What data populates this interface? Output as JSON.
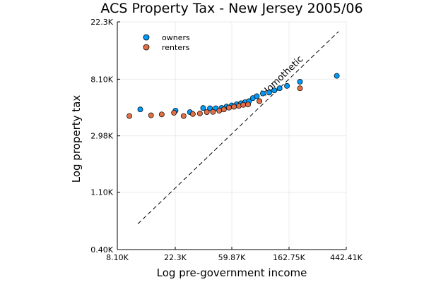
{
  "chart_data": {
    "type": "scatter",
    "title": "ACS Property Tax - New Jersey 2005/06",
    "xlabel": "Log pre-government income",
    "ylabel": "Log property tax",
    "xscale": "log",
    "yscale": "log",
    "xlim": [
      8100,
      442410
    ],
    "ylim": [
      400,
      22300
    ],
    "x_ticks": [
      {
        "value": 8100,
        "label": "8.10K"
      },
      {
        "value": 22300,
        "label": "22.3K"
      },
      {
        "value": 59870,
        "label": "59.87K"
      },
      {
        "value": 162750,
        "label": "162.75K"
      },
      {
        "value": 442410,
        "label": "442.41K"
      }
    ],
    "y_ticks": [
      {
        "value": 400,
        "label": "0.40K"
      },
      {
        "value": 1100,
        "label": "1.10K"
      },
      {
        "value": 2980,
        "label": "2.98K"
      },
      {
        "value": 8100,
        "label": "8.10K"
      },
      {
        "value": 22300,
        "label": "22.3K"
      }
    ],
    "grid": true,
    "legend_position": "top-left",
    "series": [
      {
        "name": "owners",
        "color": "#009af9",
        "points": [
          [
            12100,
            4750
          ],
          [
            22400,
            4650
          ],
          [
            28800,
            4530
          ],
          [
            36300,
            4870
          ],
          [
            40900,
            4850
          ],
          [
            45300,
            4850
          ],
          [
            50100,
            4880
          ],
          [
            54600,
            5000
          ],
          [
            59800,
            5100
          ],
          [
            65200,
            5200
          ],
          [
            70300,
            5300
          ],
          [
            75500,
            5400
          ],
          [
            80900,
            5500
          ],
          [
            86500,
            5800
          ],
          [
            92700,
            6000
          ],
          [
            103000,
            6300
          ],
          [
            115000,
            6400
          ],
          [
            126000,
            6650
          ],
          [
            138000,
            6900
          ],
          [
            157000,
            7200
          ],
          [
            197000,
            7750
          ],
          [
            375000,
            8600
          ]
        ]
      },
      {
        "name": "renters",
        "color": "#e26f46",
        "points": [
          [
            10000,
            4230
          ],
          [
            14600,
            4280
          ],
          [
            17600,
            4350
          ],
          [
            21800,
            4480
          ],
          [
            25800,
            4230
          ],
          [
            30300,
            4380
          ],
          [
            34300,
            4420
          ],
          [
            38700,
            4530
          ],
          [
            43100,
            4550
          ],
          [
            48100,
            4650
          ],
          [
            52100,
            4750
          ],
          [
            57000,
            4900
          ],
          [
            62200,
            4980
          ],
          [
            67800,
            5060
          ],
          [
            73200,
            5150
          ],
          [
            79500,
            5180
          ],
          [
            97000,
            5500
          ],
          [
            197000,
            6900
          ]
        ]
      }
    ],
    "reference_line": {
      "label": "Homothetic",
      "style": "dashed",
      "points": [
        [
          11600,
          630
        ],
        [
          387000,
          18800
        ]
      ]
    }
  }
}
